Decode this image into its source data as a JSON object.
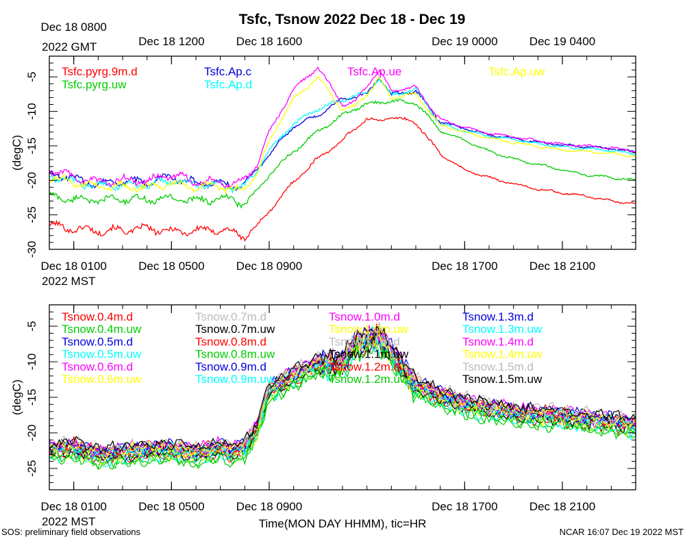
{
  "title": "Tsfc, Tsnow 2022 Dec 18 - Dec 19",
  "footer": {
    "left": "SOS: preliminary field observations",
    "right": "NCAR 16:07 Dec 19 2022 MST"
  },
  "colors": {
    "red": "#ff0000",
    "green": "#00cc00",
    "blue": "#0000dd",
    "cyan": "#00ffff",
    "magenta": "#ff00ff",
    "yellow": "#ffff00",
    "gray": "#bbbbbb",
    "black": "#000000"
  },
  "chart_data": [
    {
      "type": "line",
      "ylabel": "(degC)",
      "ylim": [
        -30,
        -2
      ],
      "yticks": [
        -30,
        -25,
        -20,
        -15,
        -10,
        -5
      ],
      "xlim": [
        0,
        24
      ],
      "gmt_tick_labels": [
        {
          "x": 1,
          "label": "Dec 18 0800"
        },
        {
          "x": 5,
          "label": "Dec 18 1200"
        },
        {
          "x": 9,
          "label": "Dec 18 1600"
        },
        {
          "x": 17,
          "label": "Dec 19 0000"
        },
        {
          "x": 21,
          "label": "Dec 19 0400"
        }
      ],
      "gmt_year_label": "2022 GMT",
      "mst_tick_labels": [
        {
          "x": 1,
          "label": "Dec 18 0100"
        },
        {
          "x": 5,
          "label": "Dec 18 0500"
        },
        {
          "x": 9,
          "label": "Dec 18 0900"
        },
        {
          "x": 17,
          "label": "Dec 18 1700"
        },
        {
          "x": 21,
          "label": "Dec 18 2100"
        }
      ],
      "mst_year_label": "2022 MST",
      "series": [
        {
          "name": "Tsfc.pyrg.9m.d",
          "color": "#ff0000",
          "x": [
            0,
            1,
            2,
            3,
            4,
            5,
            6,
            7,
            7.5,
            8,
            8.5,
            9,
            10,
            11,
            12,
            12.5,
            13,
            13.5,
            14,
            15,
            16,
            17,
            18,
            19,
            20,
            21,
            22,
            23,
            24
          ],
          "y": [
            -26.5,
            -27,
            -27.3,
            -27.2,
            -27,
            -27.4,
            -27.3,
            -27.1,
            -27.6,
            -28.1,
            -26.6,
            -24.5,
            -20.2,
            -16.8,
            -14.2,
            -12.5,
            -11.1,
            -11.4,
            -10.8,
            -11.6,
            -16.2,
            -18.5,
            -19.6,
            -20.5,
            -21.3,
            -21.8,
            -22.3,
            -23.0,
            -23.4
          ]
        },
        {
          "name": "Tsfc.pyrg.uw",
          "color": "#00cc00",
          "x": [
            0,
            1,
            2,
            3,
            4,
            5,
            6,
            7,
            7.5,
            8,
            8.5,
            9,
            10,
            11,
            12,
            12.5,
            13,
            13.5,
            14,
            15,
            16,
            17,
            18,
            19,
            20,
            21,
            22,
            23,
            24
          ],
          "y": [
            -22.4,
            -22.7,
            -22.9,
            -22.7,
            -22.8,
            -22.6,
            -22.9,
            -22.7,
            -22.8,
            -23.4,
            -21.6,
            -19.2,
            -15.8,
            -12.9,
            -10.6,
            -9.6,
            -9.0,
            -8.7,
            -8.5,
            -8.8,
            -12.8,
            -14.2,
            -15.8,
            -16.9,
            -17.7,
            -18.5,
            -19.2,
            -19.6,
            -20.0
          ]
        },
        {
          "name": "Tsfc.Ap.c",
          "color": "#0000dd",
          "x": [
            0,
            1,
            2,
            3,
            4,
            5,
            6,
            7,
            7.5,
            8,
            8.5,
            9,
            10,
            11,
            12,
            12.5,
            13,
            13.5,
            14,
            15,
            16,
            17,
            18,
            19,
            20,
            21,
            22,
            23,
            24
          ],
          "y": [
            -18.9,
            -19.8,
            -20.5,
            -20.1,
            -20.3,
            -19.5,
            -20.4,
            -20.3,
            -20.9,
            -20.5,
            -18.4,
            -16.2,
            -12.2,
            -10.6,
            -8.2,
            -7.8,
            -7.6,
            -5.0,
            -7.6,
            -7.0,
            -11.5,
            -12.5,
            -13.4,
            -13.9,
            -14.5,
            -14.9,
            -15.1,
            -15.4,
            -15.9
          ]
        },
        {
          "name": "Tsfc.Ap.d",
          "color": "#00ffff",
          "x": [
            0,
            1,
            2,
            3,
            4,
            5,
            6,
            7,
            7.5,
            8,
            8.5,
            9,
            10,
            11,
            12,
            12.5,
            13,
            13.5,
            14,
            15,
            16,
            17,
            18,
            19,
            20,
            21,
            22,
            23,
            24
          ],
          "y": [
            -19.4,
            -20.2,
            -20.8,
            -20.6,
            -20.7,
            -20.0,
            -20.7,
            -20.6,
            -21.1,
            -20.9,
            -18.6,
            -15.6,
            -11.8,
            -9.6,
            -8.4,
            -7.7,
            -7.4,
            -5.2,
            -7.7,
            -6.8,
            -11.8,
            -12.8,
            -13.6,
            -14.1,
            -14.7,
            -15.2,
            -15.4,
            -15.7,
            -16.2
          ]
        },
        {
          "name": "Tsfc.Ap.ue",
          "color": "#ff00ff",
          "x": [
            0,
            1,
            2,
            3,
            4,
            5,
            6,
            7,
            7.5,
            8,
            8.5,
            9,
            10,
            11,
            12,
            12.5,
            13,
            13.5,
            14,
            15,
            16,
            17,
            18,
            19,
            20,
            21,
            22,
            23,
            24
          ],
          "y": [
            -18.5,
            -19.5,
            -20.3,
            -19.9,
            -20.1,
            -19.2,
            -20.2,
            -20.1,
            -20.6,
            -20.0,
            -17.8,
            -13.0,
            -6.8,
            -3.6,
            -9.0,
            -8.7,
            -6.2,
            -4.0,
            -7.0,
            -6.5,
            -11.2,
            -12.3,
            -13.2,
            -13.7,
            -14.3,
            -14.8,
            -15.0,
            -15.3,
            -15.8
          ]
        },
        {
          "name": "Tsfc.Ap.uw",
          "color": "#ffff00",
          "x": [
            0,
            1,
            2,
            3,
            4,
            5,
            6,
            7,
            7.5,
            8,
            8.5,
            9,
            10,
            11,
            12,
            12.5,
            13,
            13.5,
            14,
            15,
            16,
            17,
            18,
            19,
            20,
            21,
            22,
            23,
            24
          ],
          "y": [
            -19.6,
            -20.3,
            -21.0,
            -20.9,
            -21.0,
            -20.5,
            -21.0,
            -20.8,
            -21.5,
            -21.2,
            -19.1,
            -14.2,
            -8.2,
            -5.0,
            -9.8,
            -9.3,
            -7.5,
            -5.3,
            -8.0,
            -7.5,
            -12.0,
            -13.0,
            -13.9,
            -14.5,
            -15.1,
            -15.6,
            -15.8,
            -16.1,
            -16.5
          ]
        }
      ]
    },
    {
      "type": "line",
      "ylabel": "(degC)",
      "ylim": [
        -28,
        -2
      ],
      "yticks": [
        -25,
        -20,
        -15,
        -10,
        -5
      ],
      "xlim": [
        0,
        24
      ],
      "mst_tick_labels": [
        {
          "x": 1,
          "label": "Dec 18 0100"
        },
        {
          "x": 5,
          "label": "Dec 18 0500"
        },
        {
          "x": 9,
          "label": "Dec 18 0900"
        },
        {
          "x": 17,
          "label": "Dec 18 1700"
        },
        {
          "x": 21,
          "label": "Dec 18 2100"
        }
      ],
      "mst_year_label": "2022 MST",
      "xlabel": "Time(MON DAY HHMM), tic=HR",
      "base_profile": {
        "x": [
          0,
          1,
          2,
          3,
          4,
          5,
          6,
          7,
          7.5,
          8,
          8.5,
          9,
          10,
          11,
          12,
          12.5,
          13,
          13.5,
          14,
          15,
          16,
          17,
          18,
          19,
          20,
          21,
          22,
          23,
          24
        ],
        "y": [
          -22.0,
          -21.5,
          -22.6,
          -22.3,
          -22.0,
          -21.8,
          -22.4,
          -21.6,
          -22.2,
          -21.6,
          -19.0,
          -13.5,
          -11.5,
          -9.8,
          -9.8,
          -7.3,
          -6.4,
          -6.0,
          -8.3,
          -12.8,
          -14.3,
          -15.4,
          -16.1,
          -16.6,
          -17.0,
          -17.2,
          -17.6,
          -18.0,
          -18.5
        ]
      },
      "series": [
        {
          "name": "Tsnow.0.4m.d",
          "color": "#ff0000",
          "offset": -1.2
        },
        {
          "name": "Tsnow.0.4m.uw",
          "color": "#00cc00",
          "offset": -2.0
        },
        {
          "name": "Tsnow.0.5m.d",
          "color": "#0000dd",
          "offset": -0.9
        },
        {
          "name": "Tsnow.0.5m.uw",
          "color": "#00ffff",
          "offset": -1.6
        },
        {
          "name": "Tsnow.0.6m.d",
          "color": "#ff00ff",
          "offset": -0.7
        },
        {
          "name": "Tsnow.0.6m.uw",
          "color": "#ffff00",
          "offset": -1.3
        },
        {
          "name": "Tsnow.0.7m.d",
          "color": "#bbbbbb",
          "offset": -0.5
        },
        {
          "name": "Tsnow.0.7m.uw",
          "color": "#000000",
          "offset": -1.0
        },
        {
          "name": "Tsnow.0.8m.d",
          "color": "#ff0000",
          "offset": -0.4
        },
        {
          "name": "Tsnow.0.8m.uw",
          "color": "#00cc00",
          "offset": -0.8
        },
        {
          "name": "Tsnow.0.9m.d",
          "color": "#0000dd",
          "offset": -0.3
        },
        {
          "name": "Tsnow.0.9m.uw",
          "color": "#00ffff",
          "offset": -0.6
        },
        {
          "name": "Tsnow.1.0m.d",
          "color": "#ff00ff",
          "offset": -0.2
        },
        {
          "name": "Tsnow.1.0m.uw",
          "color": "#ffff00",
          "offset": -0.5
        },
        {
          "name": "Tsnow.1.1m.d",
          "color": "#bbbbbb",
          "offset": -0.1
        },
        {
          "name": "Tsnow.1.1m.uw",
          "color": "#000000",
          "offset": 0.0
        },
        {
          "name": "Tsnow.1.2m.d",
          "color": "#ff0000",
          "offset": 0.1
        },
        {
          "name": "Tsnow.1.2m.uw",
          "color": "#00cc00",
          "offset": -1.8
        },
        {
          "name": "Tsnow.1.3m.d",
          "color": "#0000dd",
          "offset": 0.2
        },
        {
          "name": "Tsnow.1.3m.uw",
          "color": "#00ffff",
          "offset": -0.2
        },
        {
          "name": "Tsnow.1.4m.d",
          "color": "#ff00ff",
          "offset": 0.3
        },
        {
          "name": "Tsnow.1.4m.uw",
          "color": "#ffff00",
          "offset": 0.0
        },
        {
          "name": "Tsnow.1.5m.d",
          "color": "#bbbbbb",
          "offset": 0.5
        },
        {
          "name": "Tsnow.1.5m.uw",
          "color": "#000000",
          "offset": 0.4
        }
      ]
    }
  ]
}
